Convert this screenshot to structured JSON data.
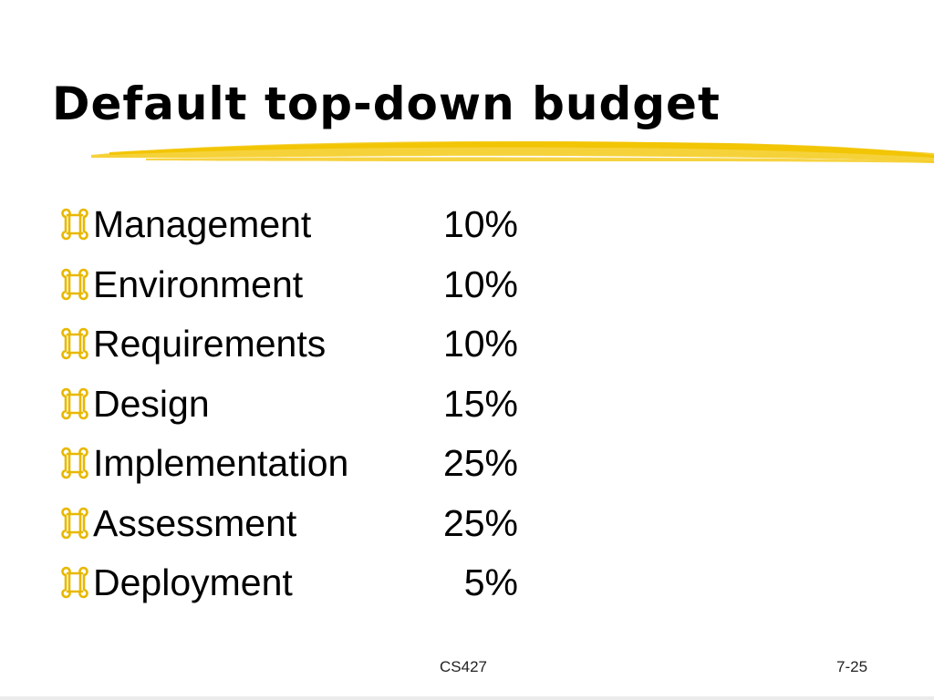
{
  "slide": {
    "title": "Default top-down budget",
    "bullet_icon": "command-key-icon",
    "accent_color": "#f2c300",
    "items": [
      {
        "label": "Management",
        "value": "10%"
      },
      {
        "label": "Environment",
        "value": "10%"
      },
      {
        "label": "Requirements",
        "value": "10%"
      },
      {
        "label": "Design",
        "value": "15%"
      },
      {
        "label": "Implementation",
        "value": "25%"
      },
      {
        "label": "Assessment",
        "value": "25%"
      },
      {
        "label": "Deployment",
        "value": "5%"
      }
    ],
    "footer": {
      "course": "CS427",
      "page": "7-25"
    }
  }
}
